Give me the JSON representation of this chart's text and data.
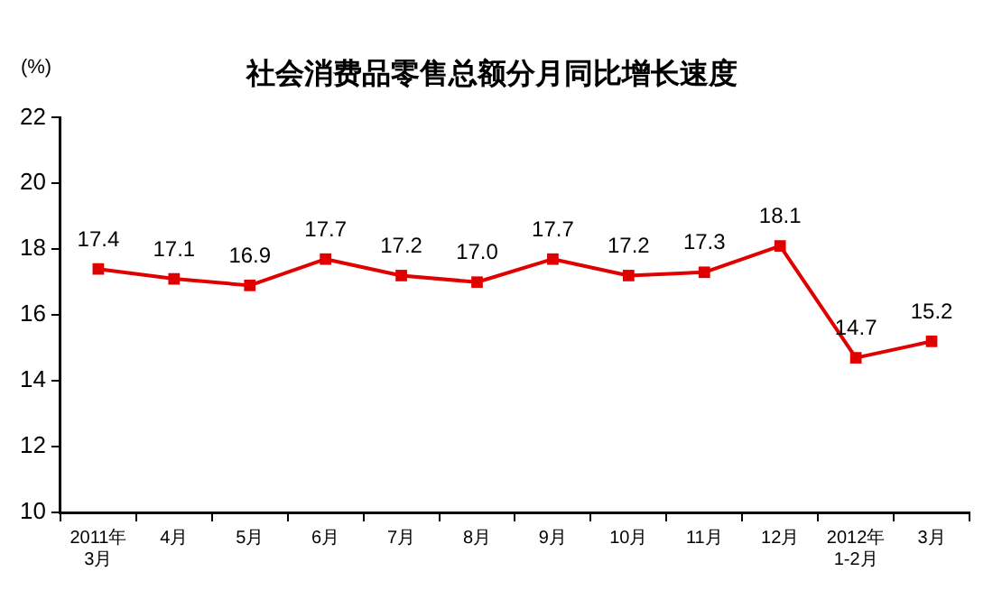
{
  "chart_data": {
    "type": "line",
    "title": "社会消费品零售总额分月同比增长速度",
    "ylabel": "(%)",
    "categories": [
      "2011年\n3月",
      "4月",
      "5月",
      "6月",
      "7月",
      "8月",
      "9月",
      "10月",
      "11月",
      "12月",
      "2012年\n1-2月",
      "3月"
    ],
    "series": [
      {
        "color": "#e00000",
        "values": [
          17.4,
          17.1,
          16.9,
          17.7,
          17.2,
          17.0,
          17.7,
          17.2,
          17.3,
          18.1,
          14.7,
          15.2
        ],
        "value_labels": [
          "17.4",
          "17.1",
          "16.9",
          "17.7",
          "17.2",
          "17.0",
          "17.7",
          "17.2",
          "17.3",
          "18.1",
          "14.7",
          "15.2"
        ]
      }
    ],
    "ylim": [
      10,
      22
    ],
    "yticks": [
      10,
      12,
      14,
      16,
      18,
      20,
      22
    ],
    "grid": false,
    "legend": false,
    "marker": "square",
    "line_style": "solid"
  }
}
